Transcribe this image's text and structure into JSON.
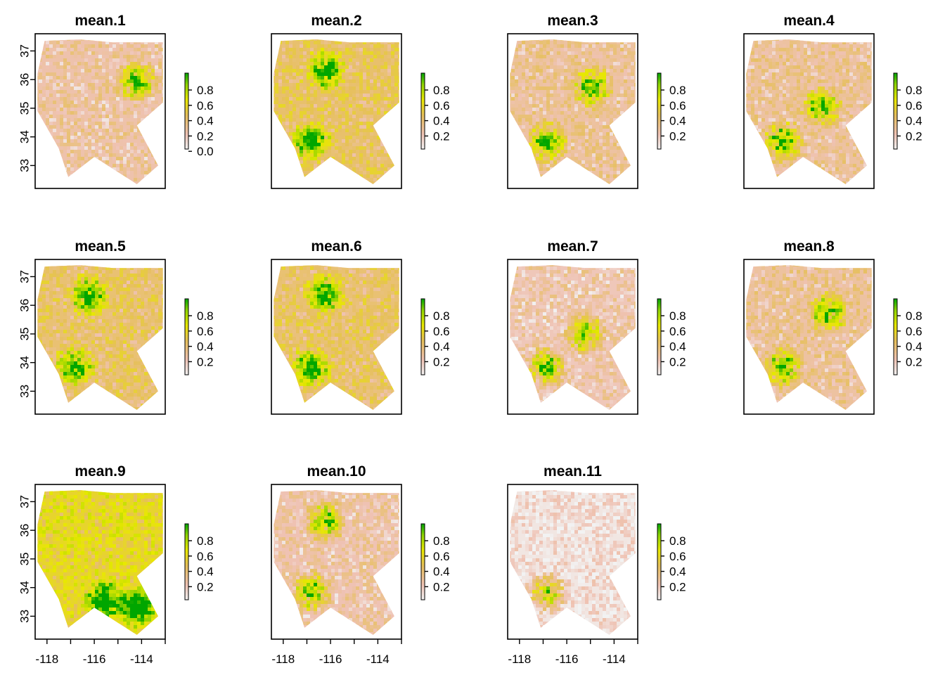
{
  "chart_data": {
    "type": "heatmap",
    "description_units": {
      "x": "longitude",
      "y": "latitude"
    },
    "xlim": [
      -118.5,
      -113.0
    ],
    "ylim": [
      32.2,
      37.6
    ],
    "x_ticks": [
      -118,
      -117,
      -116,
      -115,
      -114,
      -113
    ],
    "x_tick_labels": [
      "-118",
      "-116",
      "-114"
    ],
    "y_ticks": [
      33,
      34,
      35,
      36,
      37
    ],
    "y_tick_labels": [
      "33",
      "34",
      "35",
      "36",
      "37"
    ],
    "colorscale": [
      "#f2f2f2",
      "#efc2b3",
      "#eac8a4",
      "#e6c05a",
      "#e8e800",
      "#8fd400",
      "#00a600"
    ],
    "panels": [
      {
        "title": "mean.1",
        "legend_ticks": [
          "0.8",
          "0.6",
          "0.4",
          "0.2",
          "0.0"
        ],
        "mean_level": 0.22,
        "green_regions": [
          "north-east"
        ]
      },
      {
        "title": "mean.2",
        "legend_ticks": [
          "0.8",
          "0.6",
          "0.4",
          "0.2"
        ],
        "mean_level": 0.4,
        "green_regions": [
          "north",
          "south-west"
        ]
      },
      {
        "title": "mean.3",
        "legend_ticks": [
          "0.8",
          "0.6",
          "0.4",
          "0.2"
        ],
        "mean_level": 0.25,
        "green_regions": [
          "center-north",
          "south-west"
        ]
      },
      {
        "title": "mean.4",
        "legend_ticks": [
          "0.8",
          "0.6",
          "0.4",
          "0.2"
        ],
        "mean_level": 0.25,
        "green_regions": [
          "center",
          "south-west"
        ]
      },
      {
        "title": "mean.5",
        "legend_ticks": [
          "0.8",
          "0.6",
          "0.4",
          "0.2"
        ],
        "mean_level": 0.38,
        "green_regions": [
          "north",
          "south-west"
        ]
      },
      {
        "title": "mean.6",
        "legend_ticks": [
          "0.8",
          "0.6",
          "0.4",
          "0.2"
        ],
        "mean_level": 0.38,
        "green_regions": [
          "north",
          "south-west"
        ]
      },
      {
        "title": "mean.7",
        "legend_ticks": [
          "0.8",
          "0.6",
          "0.4",
          "0.2"
        ],
        "mean_level": 0.18,
        "green_regions": [
          "center",
          "south-west"
        ]
      },
      {
        "title": "mean.8",
        "legend_ticks": [
          "0.8",
          "0.6",
          "0.4",
          "0.2"
        ],
        "mean_level": 0.25,
        "green_regions": [
          "center-north",
          "south-west"
        ]
      },
      {
        "title": "mean.9",
        "legend_ticks": [
          "0.8",
          "0.6",
          "0.4",
          "0.2"
        ],
        "mean_level": 0.55,
        "green_regions": [
          "south",
          "south-east"
        ]
      },
      {
        "title": "mean.10",
        "legend_ticks": [
          "0.8",
          "0.6",
          "0.4",
          "0.2"
        ],
        "mean_level": 0.2,
        "green_regions": [
          "north",
          "south-west"
        ]
      },
      {
        "title": "mean.11",
        "legend_ticks": [
          "0.8",
          "0.6",
          "0.4",
          "0.2"
        ],
        "mean_level": 0.05,
        "green_regions": [
          "south-west"
        ]
      }
    ]
  }
}
